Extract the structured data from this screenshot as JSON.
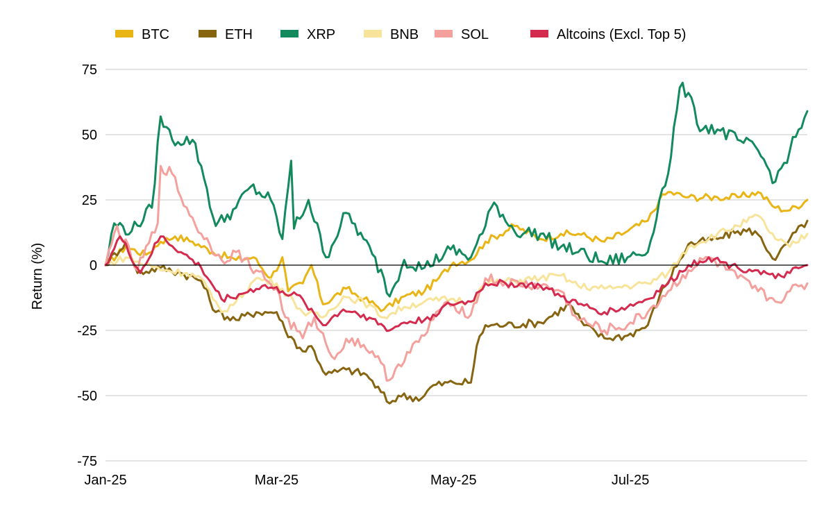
{
  "chart_data": {
    "type": "line",
    "title": "",
    "xlabel": "",
    "ylabel": "Return (%)",
    "ylim": [
      -75,
      75
    ],
    "yticks": [
      75,
      50,
      25,
      0,
      -25,
      -50,
      -75
    ],
    "y_tick_labels": [
      "75",
      "50",
      "25",
      "0",
      "-25",
      "-50",
      "-75"
    ],
    "xlim": [
      "2025-01-01",
      "2025-08-31"
    ],
    "x_tick_labels": [
      {
        "label": "Jan-25",
        "date": "2025-01-01"
      },
      {
        "label": "Mar-25",
        "date": "2025-03-01"
      },
      {
        "label": "May-25",
        "date": "2025-05-01"
      },
      {
        "label": "Jul-25",
        "date": "2025-07-01"
      }
    ],
    "grid": true,
    "zero_line": true,
    "legend_position": "top",
    "series": [
      {
        "name": "BTC",
        "color": "#E8B514",
        "points": [
          [
            "2025-01-01",
            0
          ],
          [
            "2025-01-08",
            7
          ],
          [
            "2025-01-15",
            4
          ],
          [
            "2025-01-20",
            9
          ],
          [
            "2025-01-25",
            11
          ],
          [
            "2025-01-31",
            9
          ],
          [
            "2025-02-07",
            5
          ],
          [
            "2025-02-15",
            2
          ],
          [
            "2025-02-21",
            3
          ],
          [
            "2025-02-27",
            -5
          ],
          [
            "2025-03-03",
            3
          ],
          [
            "2025-03-05",
            -10
          ],
          [
            "2025-03-10",
            -7
          ],
          [
            "2025-03-13",
            0
          ],
          [
            "2025-03-17",
            -15
          ],
          [
            "2025-03-25",
            -9
          ],
          [
            "2025-03-31",
            -13
          ],
          [
            "2025-04-07",
            -17
          ],
          [
            "2025-04-14",
            -12
          ],
          [
            "2025-04-21",
            -10
          ],
          [
            "2025-04-25",
            -6
          ],
          [
            "2025-05-01",
            1
          ],
          [
            "2025-05-07",
            2
          ],
          [
            "2025-05-12",
            9
          ],
          [
            "2025-05-22",
            15
          ],
          [
            "2025-05-31",
            10
          ],
          [
            "2025-06-07",
            12
          ],
          [
            "2025-06-13",
            12
          ],
          [
            "2025-06-22",
            9
          ],
          [
            "2025-06-30",
            13
          ],
          [
            "2025-07-07",
            17
          ],
          [
            "2025-07-11",
            25
          ],
          [
            "2025-07-14",
            28
          ],
          [
            "2025-07-21",
            26
          ],
          [
            "2025-07-31",
            26
          ],
          [
            "2025-08-07",
            26
          ],
          [
            "2025-08-14",
            28
          ],
          [
            "2025-08-20",
            22
          ],
          [
            "2025-08-25",
            21
          ],
          [
            "2025-08-31",
            25
          ]
        ]
      },
      {
        "name": "ETH",
        "color": "#876410",
        "points": [
          [
            "2025-01-01",
            0
          ],
          [
            "2025-01-08",
            9
          ],
          [
            "2025-01-12",
            -3
          ],
          [
            "2025-01-20",
            -1
          ],
          [
            "2025-01-27",
            -3
          ],
          [
            "2025-02-03",
            -6
          ],
          [
            "2025-02-08",
            -18
          ],
          [
            "2025-02-15",
            -21
          ],
          [
            "2025-02-22",
            -18
          ],
          [
            "2025-03-01",
            -18
          ],
          [
            "2025-03-04",
            -25
          ],
          [
            "2025-03-10",
            -33
          ],
          [
            "2025-03-13",
            -31
          ],
          [
            "2025-03-18",
            -42
          ],
          [
            "2025-03-25",
            -40
          ],
          [
            "2025-04-01",
            -42
          ],
          [
            "2025-04-09",
            -53
          ],
          [
            "2025-04-12",
            -50
          ],
          [
            "2025-04-20",
            -51
          ],
          [
            "2025-04-24",
            -46
          ],
          [
            "2025-05-01",
            -45
          ],
          [
            "2025-05-07",
            -45
          ],
          [
            "2025-05-09",
            -31
          ],
          [
            "2025-05-12",
            -23
          ],
          [
            "2025-05-19",
            -23
          ],
          [
            "2025-05-31",
            -22
          ],
          [
            "2025-06-10",
            -15
          ],
          [
            "2025-06-15",
            -23
          ],
          [
            "2025-06-22",
            -28
          ],
          [
            "2025-06-30",
            -27
          ],
          [
            "2025-07-07",
            -23
          ],
          [
            "2025-07-11",
            -12
          ],
          [
            "2025-07-18",
            2
          ],
          [
            "2025-07-21",
            8
          ],
          [
            "2025-07-31",
            10
          ],
          [
            "2025-08-07",
            13
          ],
          [
            "2025-08-13",
            13
          ],
          [
            "2025-08-20",
            2
          ],
          [
            "2025-08-25",
            10
          ],
          [
            "2025-08-31",
            17
          ]
        ]
      },
      {
        "name": "XRP",
        "color": "#138A5E",
        "points": [
          [
            "2025-01-01",
            0
          ],
          [
            "2025-01-04",
            16
          ],
          [
            "2025-01-10",
            13
          ],
          [
            "2025-01-17",
            22
          ],
          [
            "2025-01-20",
            57
          ],
          [
            "2025-01-24",
            48
          ],
          [
            "2025-01-31",
            48
          ],
          [
            "2025-02-03",
            38
          ],
          [
            "2025-02-08",
            15
          ],
          [
            "2025-02-15",
            22
          ],
          [
            "2025-02-20",
            30
          ],
          [
            "2025-02-27",
            25
          ],
          [
            "2025-03-03",
            10
          ],
          [
            "2025-03-06",
            40
          ],
          [
            "2025-03-07",
            14
          ],
          [
            "2025-03-12",
            25
          ],
          [
            "2025-03-18",
            3
          ],
          [
            "2025-03-25",
            20
          ],
          [
            "2025-03-31",
            10
          ],
          [
            "2025-04-07",
            -5
          ],
          [
            "2025-04-09",
            -12
          ],
          [
            "2025-04-14",
            2
          ],
          [
            "2025-04-21",
            -1
          ],
          [
            "2025-04-30",
            6
          ],
          [
            "2025-05-07",
            3
          ],
          [
            "2025-05-12",
            15
          ],
          [
            "2025-05-15",
            24
          ],
          [
            "2025-05-22",
            13
          ],
          [
            "2025-05-31",
            12
          ],
          [
            "2025-06-07",
            7
          ],
          [
            "2025-06-13",
            5
          ],
          [
            "2025-06-22",
            1
          ],
          [
            "2025-06-30",
            3
          ],
          [
            "2025-07-07",
            5
          ],
          [
            "2025-07-11",
            25
          ],
          [
            "2025-07-14",
            35
          ],
          [
            "2025-07-18",
            68
          ],
          [
            "2025-07-21",
            66
          ],
          [
            "2025-07-24",
            54
          ],
          [
            "2025-07-31",
            52
          ],
          [
            "2025-08-07",
            48
          ],
          [
            "2025-08-14",
            44
          ],
          [
            "2025-08-20",
            32
          ],
          [
            "2025-08-25",
            44
          ],
          [
            "2025-08-31",
            59
          ]
        ]
      },
      {
        "name": "BNB",
        "color": "#F7E49A",
        "points": [
          [
            "2025-01-01",
            0
          ],
          [
            "2025-01-08",
            3
          ],
          [
            "2025-01-15",
            0
          ],
          [
            "2025-01-22",
            -2
          ],
          [
            "2025-01-29",
            -3
          ],
          [
            "2025-02-03",
            -5
          ],
          [
            "2025-02-07",
            -13
          ],
          [
            "2025-02-10",
            -18
          ],
          [
            "2025-02-15",
            -14
          ],
          [
            "2025-02-22",
            -5
          ],
          [
            "2025-03-01",
            -7
          ],
          [
            "2025-03-07",
            -14
          ],
          [
            "2025-03-10",
            -18
          ],
          [
            "2025-03-17",
            -20
          ],
          [
            "2025-03-24",
            -12
          ],
          [
            "2025-03-31",
            -14
          ],
          [
            "2025-04-07",
            -20
          ],
          [
            "2025-04-14",
            -16
          ],
          [
            "2025-04-21",
            -14
          ],
          [
            "2025-04-30",
            -13
          ],
          [
            "2025-05-07",
            -14
          ],
          [
            "2025-05-12",
            -7
          ],
          [
            "2025-05-22",
            -6
          ],
          [
            "2025-05-31",
            -5
          ],
          [
            "2025-06-07",
            -4
          ],
          [
            "2025-06-13",
            -8
          ],
          [
            "2025-06-22",
            -9
          ],
          [
            "2025-06-30",
            -8
          ],
          [
            "2025-07-07",
            -7
          ],
          [
            "2025-07-14",
            -3
          ],
          [
            "2025-07-21",
            7
          ],
          [
            "2025-07-31",
            12
          ],
          [
            "2025-08-07",
            15
          ],
          [
            "2025-08-14",
            19
          ],
          [
            "2025-08-20",
            10
          ],
          [
            "2025-08-25",
            7
          ],
          [
            "2025-08-31",
            12
          ]
        ]
      },
      {
        "name": "SOL",
        "color": "#F4A09C",
        "points": [
          [
            "2025-01-01",
            0
          ],
          [
            "2025-01-05",
            15
          ],
          [
            "2025-01-12",
            -2
          ],
          [
            "2025-01-19",
            16
          ],
          [
            "2025-01-20",
            38
          ],
          [
            "2025-01-24",
            35
          ],
          [
            "2025-01-27",
            26
          ],
          [
            "2025-02-03",
            12
          ],
          [
            "2025-02-10",
            2
          ],
          [
            "2025-02-15",
            5
          ],
          [
            "2025-02-22",
            -2
          ],
          [
            "2025-03-01",
            -9
          ],
          [
            "2025-03-04",
            -20
          ],
          [
            "2025-03-10",
            -28
          ],
          [
            "2025-03-14",
            -20
          ],
          [
            "2025-03-20",
            -35
          ],
          [
            "2025-03-27",
            -28
          ],
          [
            "2025-04-03",
            -33
          ],
          [
            "2025-04-09",
            -44
          ],
          [
            "2025-04-12",
            -38
          ],
          [
            "2025-04-21",
            -27
          ],
          [
            "2025-04-25",
            -18
          ],
          [
            "2025-05-01",
            -15
          ],
          [
            "2025-05-07",
            -19
          ],
          [
            "2025-05-12",
            -5
          ],
          [
            "2025-05-19",
            -7
          ],
          [
            "2025-05-31",
            -8
          ],
          [
            "2025-06-07",
            -10
          ],
          [
            "2025-06-13",
            -21
          ],
          [
            "2025-06-22",
            -25
          ],
          [
            "2025-06-30",
            -23
          ],
          [
            "2025-07-07",
            -18
          ],
          [
            "2025-07-14",
            -10
          ],
          [
            "2025-07-21",
            -2
          ],
          [
            "2025-07-28",
            3
          ],
          [
            "2025-08-07",
            -5
          ],
          [
            "2025-08-14",
            -10
          ],
          [
            "2025-08-20",
            -14
          ],
          [
            "2025-08-25",
            -10
          ],
          [
            "2025-08-31",
            -7
          ]
        ]
      },
      {
        "name": "Altcoins (Excl. Top 5)",
        "color": "#D42A4E",
        "points": [
          [
            "2025-01-01",
            0
          ],
          [
            "2025-01-06",
            11
          ],
          [
            "2025-01-13",
            -3
          ],
          [
            "2025-01-20",
            11
          ],
          [
            "2025-01-27",
            5
          ],
          [
            "2025-02-03",
            -1
          ],
          [
            "2025-02-10",
            -13
          ],
          [
            "2025-02-17",
            -11
          ],
          [
            "2025-02-24",
            -8
          ],
          [
            "2025-03-03",
            -10
          ],
          [
            "2025-03-10",
            -13
          ],
          [
            "2025-03-17",
            -23
          ],
          [
            "2025-03-24",
            -17
          ],
          [
            "2025-03-31",
            -19
          ],
          [
            "2025-04-09",
            -25
          ],
          [
            "2025-04-14",
            -22
          ],
          [
            "2025-04-21",
            -21
          ],
          [
            "2025-04-30",
            -15
          ],
          [
            "2025-05-07",
            -14
          ],
          [
            "2025-05-12",
            -7
          ],
          [
            "2025-05-19",
            -7
          ],
          [
            "2025-05-31",
            -8
          ],
          [
            "2025-06-07",
            -12
          ],
          [
            "2025-06-13",
            -15
          ],
          [
            "2025-06-22",
            -18
          ],
          [
            "2025-06-30",
            -16
          ],
          [
            "2025-07-07",
            -13
          ],
          [
            "2025-07-14",
            -7
          ],
          [
            "2025-07-21",
            0
          ],
          [
            "2025-07-28",
            3
          ],
          [
            "2025-08-07",
            -1
          ],
          [
            "2025-08-14",
            -2
          ],
          [
            "2025-08-20",
            -5
          ],
          [
            "2025-08-25",
            -3
          ],
          [
            "2025-08-31",
            0
          ]
        ]
      }
    ]
  }
}
